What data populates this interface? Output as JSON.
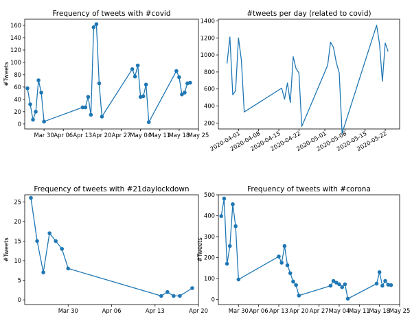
{
  "colors": {
    "series": "#1f77b4",
    "axis": "#000000",
    "background": "#ffffff"
  },
  "chart_data": [
    {
      "id": "covid",
      "type": "line",
      "markers": true,
      "title": "Frequency of tweets with #covid",
      "xlabel": "",
      "ylabel": "#Tweets",
      "xlim": [
        "2020-03-23",
        "2020-05-25"
      ],
      "ylim": [
        -8,
        170
      ],
      "grid": false,
      "x_ticks": [
        {
          "x": "2020-03-30",
          "label": "Mar 30"
        },
        {
          "x": "2020-04-06",
          "label": "Apr 06"
        },
        {
          "x": "2020-04-13",
          "label": "Apr 13"
        },
        {
          "x": "2020-04-20",
          "label": "Apr 20"
        },
        {
          "x": "2020-04-27",
          "label": "Apr 27"
        },
        {
          "x": "2020-05-04",
          "label": "May 04"
        },
        {
          "x": "2020-05-11",
          "label": "May 11"
        },
        {
          "x": "2020-05-18",
          "label": "May 18"
        },
        {
          "x": "2020-05-25",
          "label": "May 25"
        }
      ],
      "y_ticks": [
        0,
        20,
        40,
        60,
        80,
        100,
        120,
        140,
        160
      ],
      "x": [
        "2020-03-24",
        "2020-03-25",
        "2020-03-26",
        "2020-03-27",
        "2020-03-28",
        "2020-03-29",
        "2020-03-30",
        "2020-04-13",
        "2020-04-14",
        "2020-04-15",
        "2020-04-16",
        "2020-04-17",
        "2020-04-18",
        "2020-04-19",
        "2020-04-20",
        "2020-05-01",
        "2020-05-02",
        "2020-05-03",
        "2020-05-04",
        "2020-05-05",
        "2020-05-06",
        "2020-05-07",
        "2020-05-17",
        "2020-05-18",
        "2020-05-19",
        "2020-05-20",
        "2020-05-21",
        "2020-05-22"
      ],
      "values": [
        58,
        32,
        7,
        20,
        71,
        51,
        4,
        27,
        27,
        44,
        15,
        157,
        162,
        66,
        12,
        89,
        77,
        95,
        44,
        45,
        64,
        3,
        86,
        76,
        48,
        51,
        66,
        67
      ]
    },
    {
      "id": "per_day",
      "type": "line",
      "markers": false,
      "title": "#tweets per day (related to covid)",
      "xlabel": "",
      "ylabel": "",
      "xlim": [
        "2020-03-25",
        "2020-05-27"
      ],
      "ylim": [
        130,
        1420
      ],
      "grid": false,
      "x_ticks": [
        {
          "x": "2020-04-01",
          "label": "2020-04-01"
        },
        {
          "x": "2020-04-08",
          "label": "2020-04-08"
        },
        {
          "x": "2020-04-15",
          "label": "2020-04-15"
        },
        {
          "x": "2020-04-22",
          "label": "2020-04-22"
        },
        {
          "x": "2020-05-01",
          "label": "2020-05-01"
        },
        {
          "x": "2020-05-08",
          "label": "2020-05-08"
        },
        {
          "x": "2020-05-15",
          "label": "2020-05-15"
        },
        {
          "x": "2020-05-22",
          "label": "2020-05-22"
        }
      ],
      "y_ticks": [
        200,
        400,
        600,
        800,
        1000,
        1200,
        1400
      ],
      "x": [
        "2020-03-28",
        "2020-03-29",
        "2020-03-30",
        "2020-03-31",
        "2020-04-01",
        "2020-04-02",
        "2020-04-03",
        "2020-04-16",
        "2020-04-17",
        "2020-04-18",
        "2020-04-19",
        "2020-04-20",
        "2020-04-21",
        "2020-04-22",
        "2020-04-23",
        "2020-05-02",
        "2020-05-03",
        "2020-05-04",
        "2020-05-05",
        "2020-05-06",
        "2020-05-07",
        "2020-05-19",
        "2020-05-20",
        "2020-05-21",
        "2020-05-22",
        "2020-05-23"
      ],
      "values": [
        900,
        1210,
        530,
        580,
        1200,
        940,
        330,
        610,
        480,
        670,
        440,
        980,
        840,
        790,
        160,
        880,
        1150,
        1090,
        910,
        790,
        80,
        1350,
        1130,
        690,
        1140,
        1040
      ]
    },
    {
      "id": "lockdown",
      "type": "line",
      "markers": true,
      "title": "Frequency of tweets with #21daylockdown",
      "xlabel": "",
      "ylabel": "#Tweets",
      "xlim": [
        "2020-03-23",
        "2020-04-20"
      ],
      "ylim": [
        -1.2,
        26.8
      ],
      "grid": false,
      "x_ticks": [
        {
          "x": "2020-03-30",
          "label": "Mar 30"
        },
        {
          "x": "2020-04-06",
          "label": "Apr 06"
        },
        {
          "x": "2020-04-13",
          "label": "Apr 13"
        },
        {
          "x": "2020-04-20",
          "label": "Apr 20"
        }
      ],
      "y_ticks": [
        0,
        5,
        10,
        15,
        20,
        25
      ],
      "x": [
        "2020-03-24",
        "2020-03-25",
        "2020-03-26",
        "2020-03-27",
        "2020-03-28",
        "2020-03-29",
        "2020-03-30",
        "2020-04-14",
        "2020-04-15",
        "2020-04-16",
        "2020-04-17",
        "2020-04-19"
      ],
      "values": [
        26,
        15,
        7,
        17,
        15,
        13,
        8,
        1,
        2,
        1,
        1,
        3
      ]
    },
    {
      "id": "corona",
      "type": "line",
      "markers": true,
      "title": "Frequency of tweets with #corona",
      "xlabel": "",
      "ylabel": "#Tweets",
      "xlim": [
        "2020-03-23",
        "2020-05-25"
      ],
      "ylim": [
        -25,
        500
      ],
      "grid": false,
      "x_ticks": [
        {
          "x": "2020-03-30",
          "label": "Mar 30"
        },
        {
          "x": "2020-04-06",
          "label": "Apr 06"
        },
        {
          "x": "2020-04-13",
          "label": "Apr 13"
        },
        {
          "x": "2020-04-20",
          "label": "Apr 20"
        },
        {
          "x": "2020-04-27",
          "label": "Apr 27"
        },
        {
          "x": "2020-05-04",
          "label": "May 04"
        },
        {
          "x": "2020-05-11",
          "label": "May 11"
        },
        {
          "x": "2020-05-18",
          "label": "May 18"
        },
        {
          "x": "2020-05-25",
          "label": "May 25"
        }
      ],
      "y_ticks": [
        0,
        100,
        200,
        300,
        400,
        500
      ],
      "x": [
        "2020-03-24",
        "2020-03-25",
        "2020-03-26",
        "2020-03-27",
        "2020-03-28",
        "2020-03-29",
        "2020-03-30",
        "2020-04-13",
        "2020-04-14",
        "2020-04-15",
        "2020-04-16",
        "2020-04-17",
        "2020-04-18",
        "2020-04-19",
        "2020-04-20",
        "2020-05-01",
        "2020-05-02",
        "2020-05-03",
        "2020-05-04",
        "2020-05-05",
        "2020-05-06",
        "2020-05-07",
        "2020-05-17",
        "2020-05-18",
        "2020-05-19",
        "2020-05-20",
        "2020-05-21",
        "2020-05-22"
      ],
      "values": [
        398,
        482,
        170,
        255,
        455,
        350,
        95,
        205,
        175,
        255,
        163,
        125,
        85,
        68,
        18,
        65,
        88,
        80,
        72,
        58,
        72,
        3,
        75,
        130,
        65,
        88,
        70,
        68
      ]
    }
  ]
}
